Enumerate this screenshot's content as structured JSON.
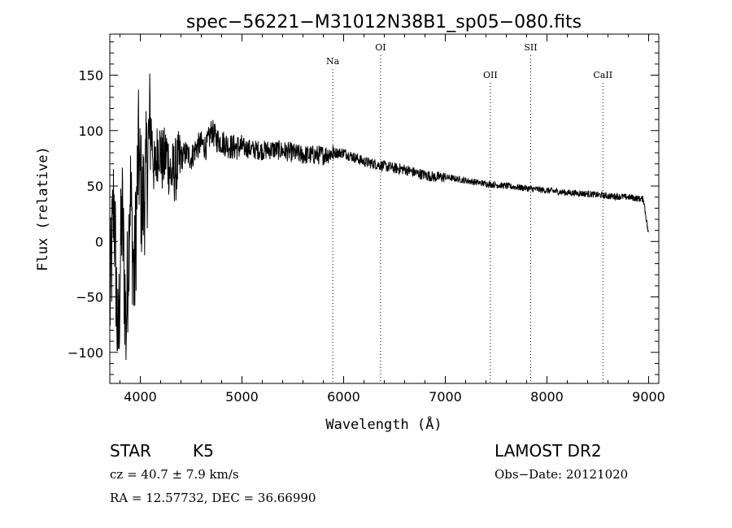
{
  "chart_data": {
    "type": "line",
    "title": "spec−56221−M31012N38B1_sp05−080.fits",
    "xlabel": "Wavelength (Å)",
    "ylabel": "Flux (relative)",
    "xlim": [
      3700,
      9100
    ],
    "ylim": [
      -128,
      187
    ],
    "xticks": [
      4000,
      5000,
      6000,
      7000,
      8000,
      9000
    ],
    "xtick_labels": [
      "4000",
      "5000",
      "6000",
      "7000",
      "8000",
      "9000"
    ],
    "yticks": [
      -100,
      -50,
      0,
      50,
      100,
      150
    ],
    "ytick_labels": [
      "−100",
      "−50",
      "0",
      "50",
      "100",
      "150"
    ],
    "grid": false,
    "lines": [
      {
        "label": "Na",
        "x": 5893
      },
      {
        "label": "OI",
        "x": 6363
      },
      {
        "label": "OII",
        "x": 7443
      },
      {
        "label": "SII",
        "x": 7840
      },
      {
        "label": "CaII",
        "x": 8550
      }
    ],
    "series": [
      {
        "x": [
          3700,
          3740,
          3780,
          3820,
          3860,
          3900,
          3940,
          3980,
          4020,
          4060,
          4100,
          4140,
          4180,
          4220,
          4260,
          4300,
          4350,
          4400,
          4450,
          4500,
          4550,
          4600,
          4650,
          4700,
          4750,
          4800,
          4900,
          5000,
          5100,
          5200,
          5300,
          5400,
          5500,
          5600,
          5700,
          5800,
          5900,
          6000,
          6100,
          6200,
          6300,
          6400,
          6500,
          6600,
          6700,
          6800,
          6900,
          7000,
          7200,
          7400,
          7600,
          7800,
          8000,
          8200,
          8400,
          8600,
          8800,
          8950,
          9000
        ],
        "y": [
          -60,
          40,
          -100,
          30,
          -80,
          50,
          -40,
          80,
          30,
          60,
          110,
          60,
          90,
          70,
          80,
          60,
          65,
          75,
          80,
          75,
          85,
          88,
          85,
          100,
          92,
          90,
          85,
          85,
          83,
          82,
          83,
          82,
          80,
          78,
          78,
          78,
          80,
          80,
          76,
          72,
          70,
          68,
          66,
          65,
          62,
          60,
          58,
          58,
          55,
          52,
          50,
          48,
          46,
          44,
          43,
          41,
          40,
          38,
          5
        ]
      }
    ]
  },
  "info": {
    "object_type": "STAR",
    "subclass": "K5",
    "survey": "LAMOST DR2",
    "cz": "cz = 40.7 ± 7.9 km/s",
    "obs_date": "Obs−Date: 20121020",
    "radec": "RA =  12.57732, DEC =  36.66990"
  }
}
